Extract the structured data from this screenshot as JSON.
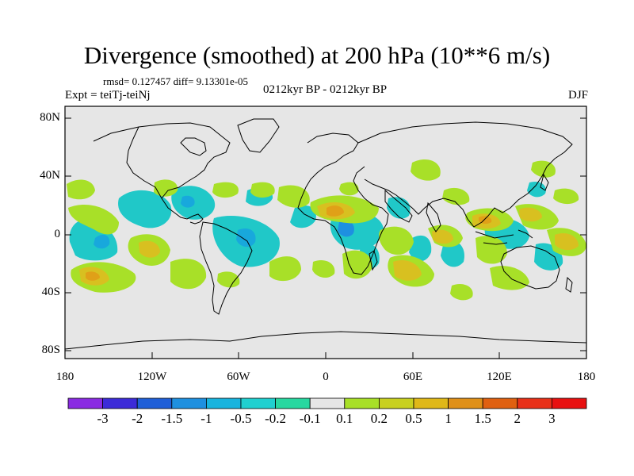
{
  "title": "Divergence (smoothed) at 200 hPa (10**6 m/s)",
  "stats": "rmsd= 0.127457 diff= 9.13301e-05",
  "experiment": "Expt = teiTj-teiNj",
  "period": "0212kyr BP - 0212kyr BP",
  "season": "DJF",
  "lat_labels": [
    "80N",
    "40N",
    "0",
    "40S",
    "80S"
  ],
  "lon_labels": [
    "180",
    "120W",
    "60W",
    "0",
    "60E",
    "120E",
    "180"
  ],
  "colorbar": {
    "labels": [
      "-3",
      "-2",
      "-1.5",
      "-1",
      "-0.5",
      "-0.2",
      "-0.1",
      "0.1",
      "0.2",
      "0.5",
      "1",
      "1.5",
      "2",
      "3"
    ],
    "colors": [
      "#8a2be2",
      "#3c2bd8",
      "#1f5fd8",
      "#1e90e0",
      "#18b4de",
      "#20d0d0",
      "#28d8a0",
      "#e6e6e6",
      "#a8e028",
      "#c8d020",
      "#e0b818",
      "#e09018",
      "#e06010",
      "#e83018",
      "#e81010"
    ]
  },
  "colors": {
    "land_ocean_neutral": "#e6e6e6",
    "coastline": "#000000"
  }
}
